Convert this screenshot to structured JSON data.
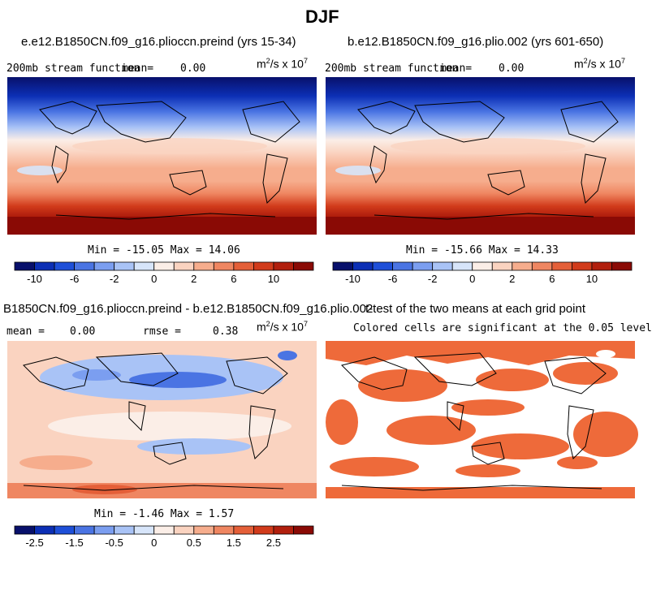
{
  "figure": {
    "title": "DJF"
  },
  "panels": [
    {
      "id": "a",
      "title": "e.e12.B1850CN.f09_g16.plioccn.preind (yrs 15-34)",
      "left_label": "200mb stream function",
      "mean_label": "mean=",
      "mean_value": "0.00",
      "unit_base": "m",
      "unit_exp1": "2",
      "unit_mid": "/s x 10",
      "unit_exp2": "7",
      "min_max": "Min = -15.05 Max =  14.06"
    },
    {
      "id": "b",
      "title": "b.e12.B1850CN.f09_g16.plio.002 (yrs 601-650)",
      "left_label": "200mb stream function",
      "mean_label": "mean=",
      "mean_value": "0.00",
      "unit_base": "m",
      "unit_exp1": "2",
      "unit_mid": "/s x 10",
      "unit_exp2": "7",
      "min_max": "Min = -15.66 Max =  14.33"
    },
    {
      "id": "c",
      "title": "B1850CN.f09_g16.plioccn.preind - b.e12.B1850CN.f09_g16.plio.002",
      "mean_label": "mean =",
      "mean_value": "0.00",
      "rmse_label": "rmse =",
      "rmse_value": "0.38",
      "unit_base": "m",
      "unit_exp1": "2",
      "unit_mid": "/s x 10",
      "unit_exp2": "7",
      "min_max": "Min = -1.46 Max =  1.57"
    },
    {
      "id": "d",
      "title": "t-test of the two means at each grid point",
      "subtitle": "Colored cells are significant at the 0.05 level"
    }
  ],
  "colorbar_main": {
    "colors": [
      "#08106b",
      "#0c2fb5",
      "#1e4fd8",
      "#4a74e3",
      "#7b9ef0",
      "#a9c3f6",
      "#d7e5fa",
      "#fbeee7",
      "#fad3c0",
      "#f6ad8d",
      "#ef8661",
      "#e45f38",
      "#d13b1b",
      "#b11f0d",
      "#8a0a05"
    ],
    "tick_labels": [
      "-10",
      "-6",
      "-2",
      "0",
      "2",
      "6",
      "10"
    ],
    "tick_values": [
      -10,
      -6,
      -2,
      0,
      2,
      6,
      10
    ]
  },
  "colorbar_diff": {
    "colors": [
      "#08106b",
      "#0c2fb5",
      "#1e4fd8",
      "#4a74e3",
      "#7b9ef0",
      "#a9c3f6",
      "#d7e5fa",
      "#fbeee7",
      "#fad3c0",
      "#f6ad8d",
      "#ef8661",
      "#e45f38",
      "#d13b1b",
      "#b11f0d",
      "#8a0a05"
    ],
    "tick_labels": [
      "-2.5",
      "-1.5",
      "-0.5",
      "0",
      "0.5",
      "1.5",
      "2.5"
    ],
    "tick_values": [
      -2.5,
      -1.5,
      -0.5,
      0,
      0.5,
      1.5,
      2.5
    ]
  },
  "significance_color": "#ee6a3a"
}
